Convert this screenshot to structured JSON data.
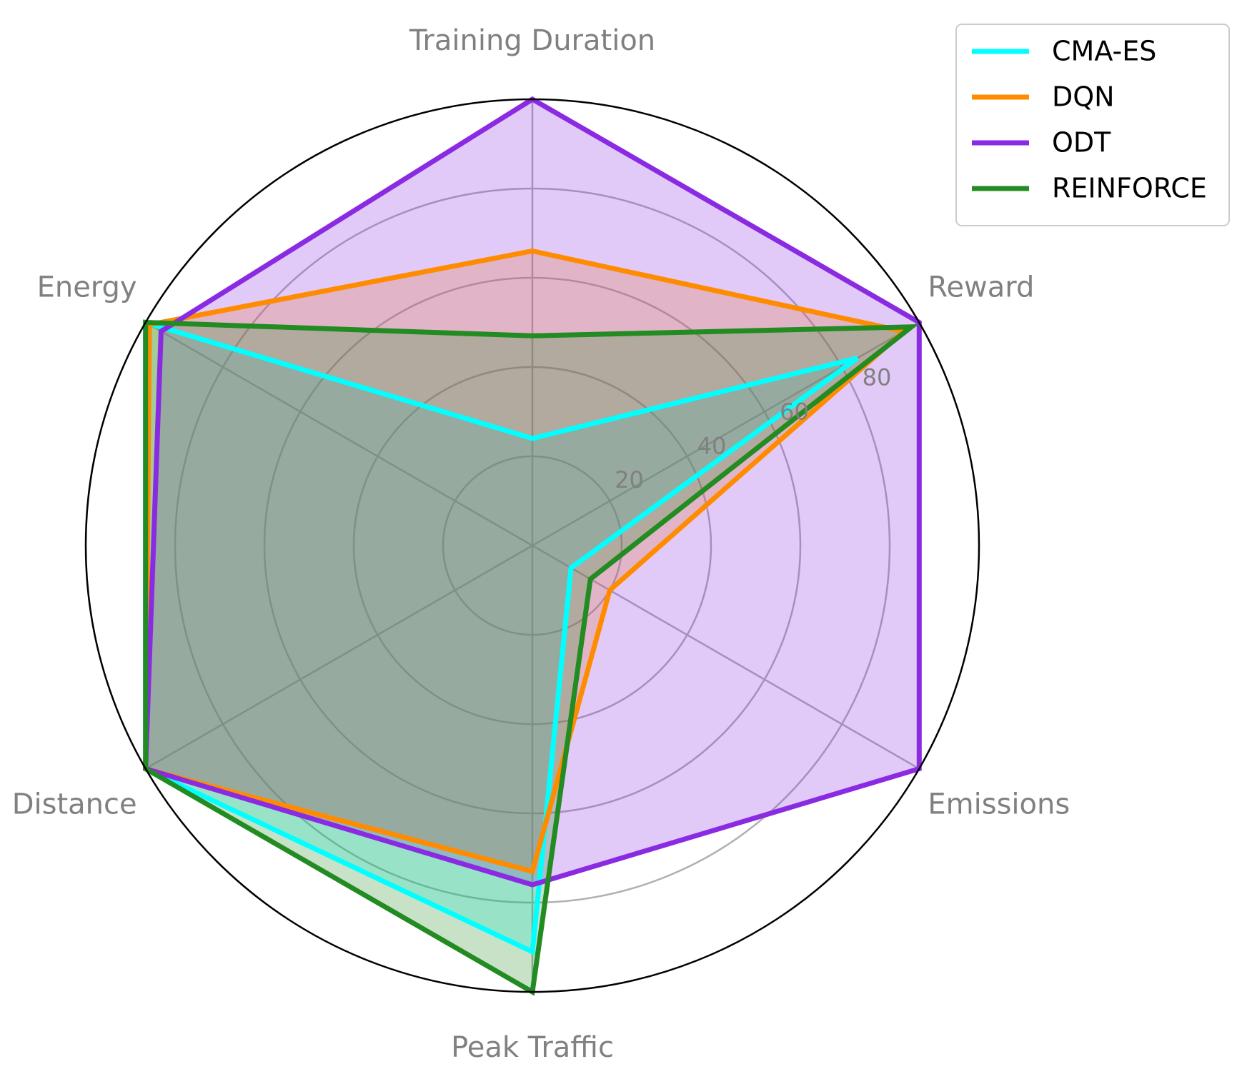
{
  "chart_data": {
    "type": "radar",
    "axes": [
      "Training Duration",
      "Reward",
      "Emissions",
      "Peak Traffic",
      "Distance",
      "Energy"
    ],
    "rlim": [
      0,
      100
    ],
    "rticks": [
      20,
      40,
      60,
      80
    ],
    "rtick_labels": [
      "20",
      "40",
      "60",
      "80"
    ],
    "grid": true,
    "legend_position": "top-right",
    "series": [
      {
        "name": "CMA-ES",
        "color": "#00FFFF",
        "fill_alpha": 0.25,
        "values": [
          24,
          84,
          10,
          91,
          100,
          100
        ]
      },
      {
        "name": "DQN",
        "color": "#FF8C00",
        "fill_alpha": 0.25,
        "values": [
          66,
          96,
          20,
          73,
          100,
          99
        ]
      },
      {
        "name": "ODT",
        "color": "#8A2BE2",
        "fill_alpha": 0.25,
        "values": [
          100,
          100,
          100,
          76,
          100,
          96
        ]
      },
      {
        "name": "REINFORCE",
        "color": "#228B22",
        "fill_alpha": 0.25,
        "values": [
          47,
          98,
          15,
          100,
          100,
          100
        ]
      }
    ]
  }
}
